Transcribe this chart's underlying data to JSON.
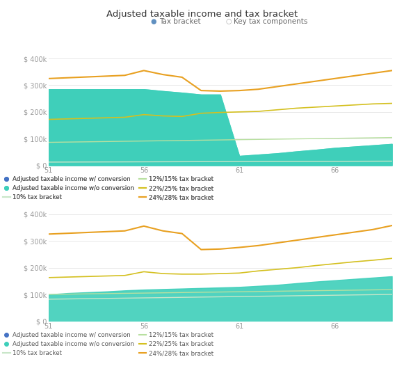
{
  "title": "Adjusted taxable income and tax bracket",
  "subtitle_items": [
    "Tax bracket",
    "Key tax components"
  ],
  "x": [
    51,
    52,
    53,
    54,
    55,
    56,
    57,
    58,
    59,
    60,
    61,
    62,
    63,
    64,
    65,
    66,
    67,
    68,
    69
  ],
  "top": {
    "income_w_conversion": [
      285000,
      285000,
      285000,
      285000,
      285000,
      285000,
      278000,
      272000,
      265000,
      265000,
      35000,
      40000,
      45000,
      52000,
      58000,
      65000,
      70000,
      75000,
      80000
    ],
    "income_wo_conversion": [
      285000,
      285000,
      285000,
      285000,
      285000,
      285000,
      278000,
      272000,
      265000,
      265000,
      35000,
      40000,
      45000,
      52000,
      58000,
      65000,
      70000,
      75000,
      80000
    ],
    "bracket_10": [
      12000,
      12200,
      12400,
      12600,
      12800,
      13000,
      13200,
      13400,
      13600,
      13800,
      14000,
      14200,
      14400,
      14600,
      14800,
      15000,
      15200,
      15400,
      15600
    ],
    "bracket_12_15": [
      86000,
      87000,
      88000,
      89000,
      90000,
      91000,
      92000,
      93000,
      94000,
      95000,
      96000,
      97000,
      98000,
      99000,
      100000,
      101000,
      102000,
      103000,
      104000
    ],
    "bracket_22_25": [
      172000,
      174000,
      176000,
      178000,
      180000,
      190000,
      185000,
      183000,
      195000,
      198000,
      200000,
      202000,
      208000,
      214000,
      218000,
      222000,
      226000,
      230000,
      232000
    ],
    "bracket_24_28": [
      325000,
      328000,
      331000,
      334000,
      337000,
      355000,
      340000,
      330000,
      280000,
      278000,
      280000,
      285000,
      295000,
      305000,
      315000,
      325000,
      335000,
      345000,
      355000
    ]
  },
  "bottom": {
    "income_wo_conversion": [
      100000,
      105000,
      108000,
      111000,
      115000,
      118000,
      120000,
      122000,
      124000,
      126000,
      128000,
      132000,
      136000,
      142000,
      148000,
      153000,
      158000,
      163000,
      168000
    ],
    "bracket_10": [
      82000,
      83000,
      84000,
      85000,
      86000,
      87000,
      88000,
      89000,
      90000,
      91000,
      92000,
      93000,
      94000,
      95000,
      96000,
      97000,
      98000,
      99000,
      100000
    ],
    "bracket_12_15": [
      100000,
      101000,
      102000,
      103000,
      104000,
      105000,
      106000,
      107000,
      108000,
      109000,
      110000,
      111000,
      112000,
      113000,
      114000,
      115000,
      116000,
      117000,
      118000
    ],
    "bracket_22_25": [
      163000,
      165000,
      167000,
      169000,
      171000,
      185000,
      178000,
      176000,
      176000,
      178000,
      180000,
      188000,
      194000,
      200000,
      208000,
      215000,
      222000,
      228000,
      235000
    ],
    "bracket_24_28": [
      326000,
      329000,
      332000,
      335000,
      338000,
      356000,
      338000,
      328000,
      268000,
      270000,
      276000,
      283000,
      293000,
      303000,
      313000,
      323000,
      333000,
      343000,
      358000
    ]
  },
  "colors": {
    "fill_w_conversion": "#3ecfba",
    "fill_wo_conversion": "#3ecfba",
    "bracket_10": "#c8e6c8",
    "bracket_12_15": "#b8e0a0",
    "bracket_22_25": "#d4c020",
    "bracket_24_28": "#e8a020"
  },
  "xlim": [
    51,
    69
  ],
  "ylim": [
    0,
    420000
  ],
  "yticks": [
    0,
    100000,
    200000,
    300000,
    400000
  ],
  "xticks": [
    51,
    56,
    61,
    66
  ],
  "background_color": "#ffffff",
  "grid_color": "#e8e8e8",
  "legend_items": [
    {
      "label": "Adjusted taxable income w/ conversion",
      "color": "#4472c4",
      "type": "dot"
    },
    {
      "label": "Adjusted taxable income w/o conversion",
      "color": "#3ecfba",
      "type": "dot"
    },
    {
      "label": "10% tax bracket",
      "color": "#c8e6c8",
      "type": "line"
    },
    {
      "label": "12%/15% tax bracket",
      "color": "#b8e0a0",
      "type": "line"
    },
    {
      "label": "22%/25% tax bracket",
      "color": "#d4c020",
      "type": "line"
    },
    {
      "label": "24%/28% tax bracket",
      "color": "#e8a020",
      "type": "line"
    }
  ]
}
